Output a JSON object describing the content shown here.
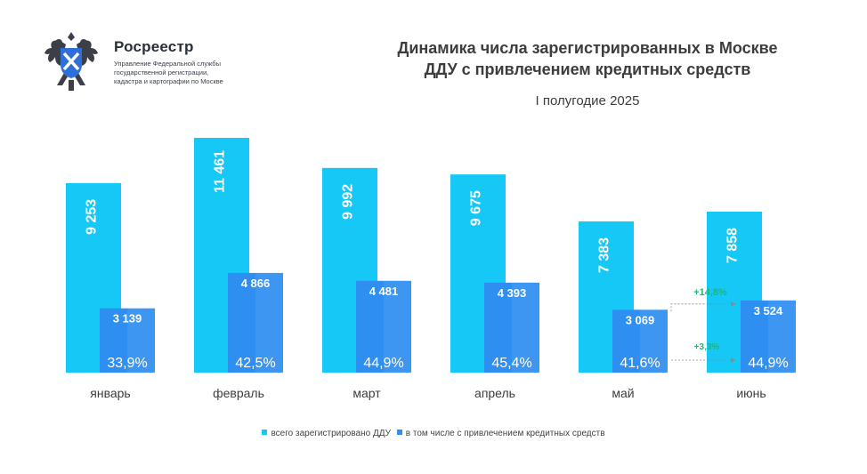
{
  "logo": {
    "name": "Росреестр",
    "sub_line1": "Управление Федеральной службы",
    "sub_line2": "государственной регистрации,",
    "sub_line3": "кадастра и картографии по Москве"
  },
  "colors": {
    "total": "#16c8f6",
    "credit": "#2f8ef2",
    "growth_text": "#22b573",
    "label_text": "#ffffff",
    "axis_text": "#3d3d3d"
  },
  "chart_data": {
    "type": "bar",
    "title_line1": "Динамика числа зарегистрированных в Москве",
    "title_line2": "ДДУ с привлечением кредитных средств",
    "subtitle": "I полугодие 2025",
    "categories": [
      "январь",
      "февраль",
      "март",
      "апрель",
      "май",
      "июнь"
    ],
    "series": [
      {
        "name": "всего зарегистрировано ДДУ",
        "values": [
          9253,
          11461,
          9992,
          9675,
          7383,
          7858
        ],
        "labels": [
          "9 253",
          "11 461",
          "9 992",
          "9 675",
          "7 383",
          "7 858"
        ]
      },
      {
        "name": "в том числе с привлечением кредитных средств",
        "values": [
          3139,
          4866,
          4481,
          4393,
          3069,
          3524
        ],
        "labels": [
          "3 139",
          "4 866",
          "4 481",
          "4 393",
          "3 069",
          "3 524"
        ],
        "shares": [
          "33,9%",
          "42,5%",
          "44,9%",
          "45,4%",
          "41,6%",
          "44,9%"
        ]
      }
    ],
    "annotations": [
      {
        "text": "+14,8%",
        "from": "май",
        "to": "июнь",
        "target": "credit_value"
      },
      {
        "text": "+3,3%",
        "from": "май",
        "to": "июнь",
        "target": "credit_share"
      }
    ],
    "ylim": [
      0,
      11461
    ],
    "grid": false,
    "legend": "bottom-center"
  }
}
